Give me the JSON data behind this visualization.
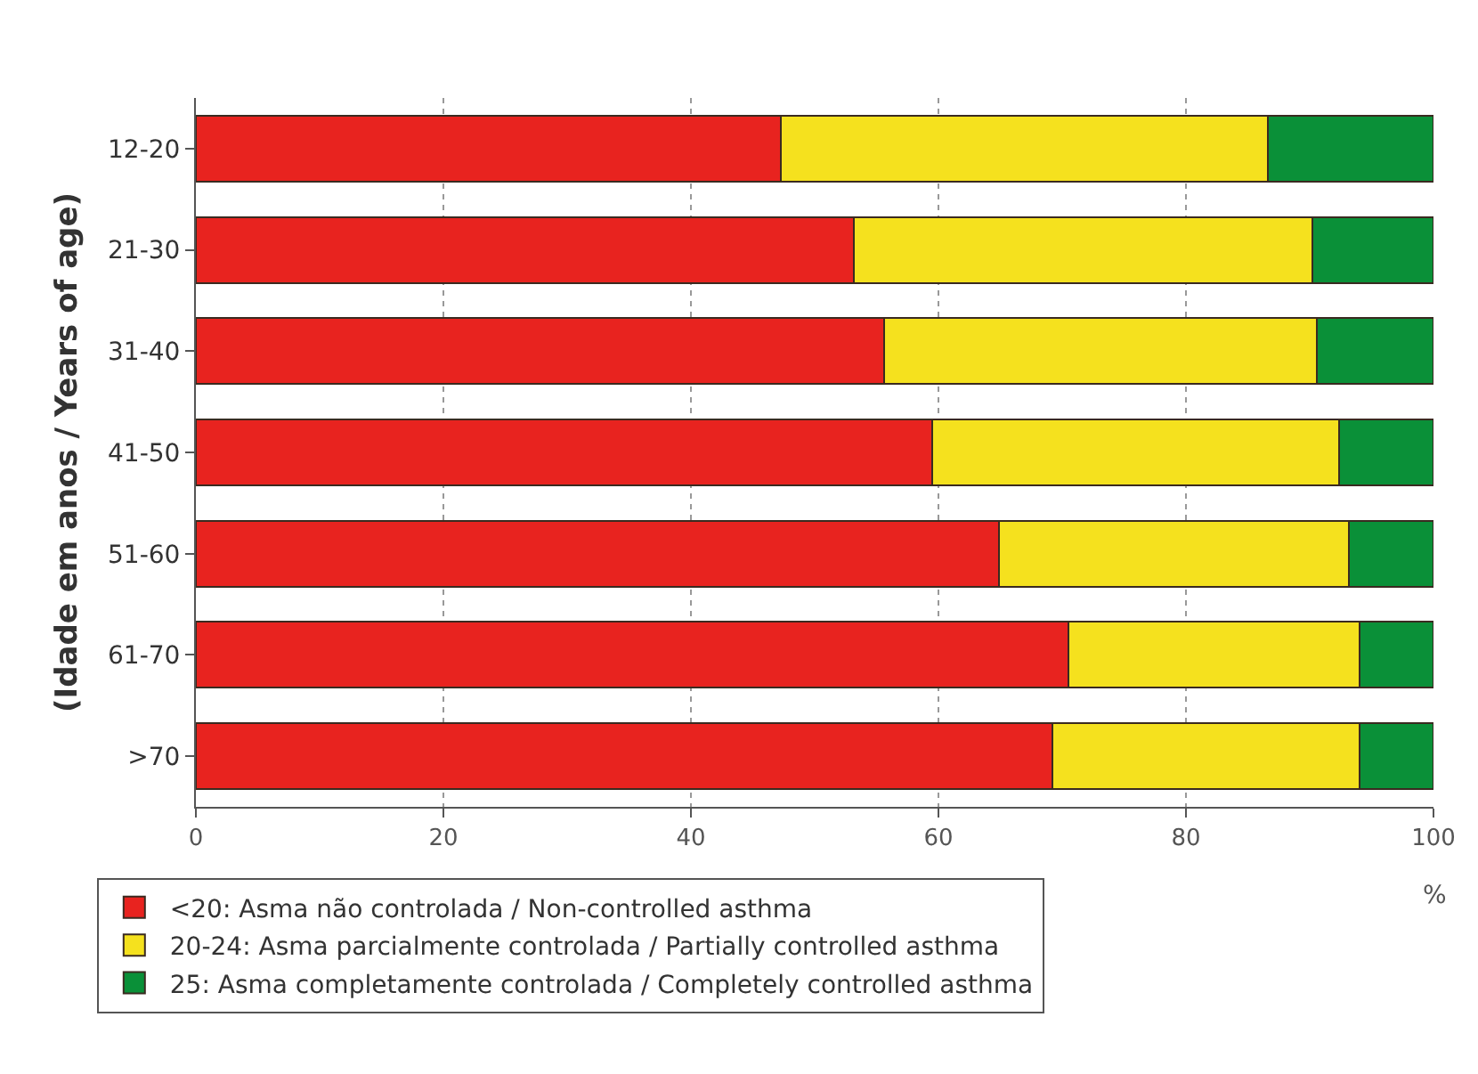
{
  "chart_data": {
    "type": "bar",
    "orientation": "horizontal",
    "stacked": true,
    "ylabel": "(Idade em anos / Years of age)",
    "xlabel": "%",
    "categories": [
      "12-20",
      "21-30",
      "31-40",
      "41-50",
      "51-60",
      "61-70",
      ">70"
    ],
    "series": [
      {
        "name": "<20: Asma não controlada / Non-controlled asthma",
        "color": "#e8231f",
        "values": [
          47.3,
          53.2,
          55.6,
          59.5,
          64.9,
          70.5,
          69.2
        ]
      },
      {
        "name": "20-24: Asma parcialmente controlada / Partially controlled asthma",
        "color": "#f5e11e",
        "values": [
          39.3,
          37.0,
          35.0,
          32.9,
          28.3,
          23.5,
          24.8
        ]
      },
      {
        "name": "25: Asma completamente controlada / Completely controlled asthma",
        "color": "#0a9038",
        "values": [
          13.4,
          9.8,
          9.4,
          7.6,
          6.8,
          6.0,
          6.0
        ]
      }
    ],
    "xlim": [
      0,
      100
    ],
    "xticks": [
      0,
      20,
      40,
      60,
      80,
      100
    ],
    "grid": "x",
    "legend": "bottom left"
  }
}
